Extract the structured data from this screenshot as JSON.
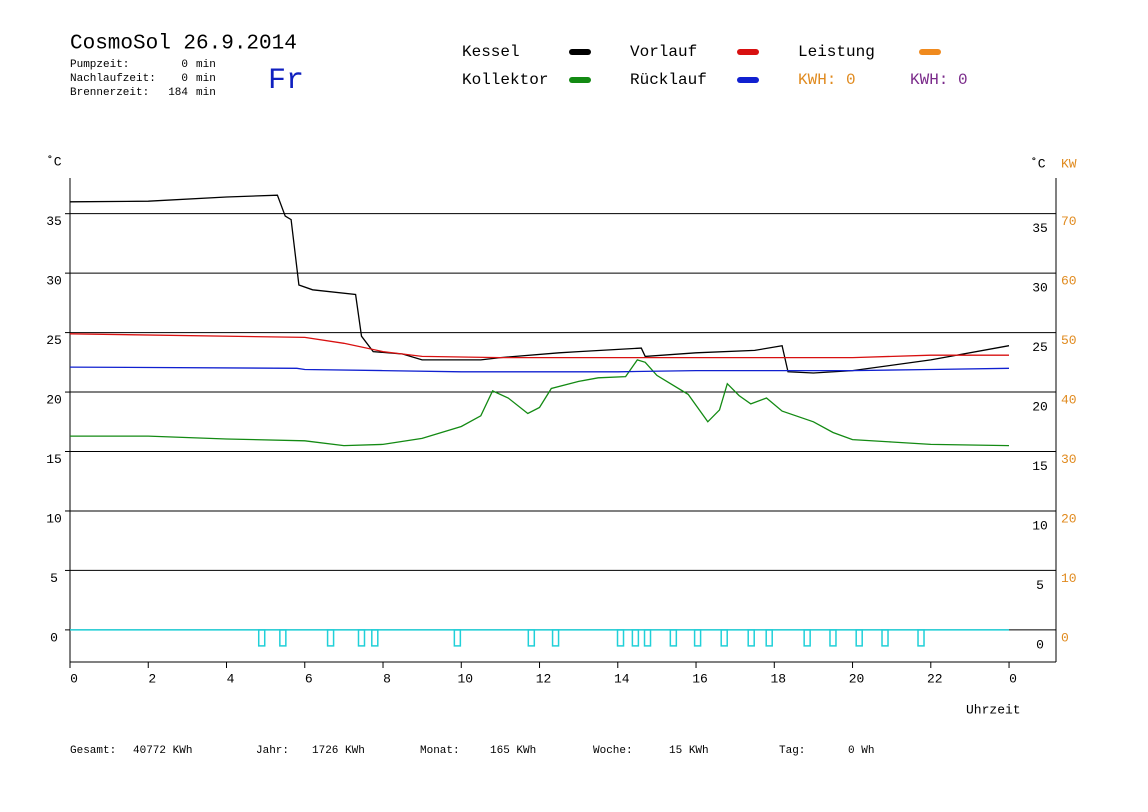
{
  "chart_data": {
    "type": "line",
    "title": "CosmoSol 26.9.2014",
    "day": "Fr",
    "stats": [
      {
        "label": "Pumpzeit:",
        "value": 0,
        "unit": "min"
      },
      {
        "label": "Nachlaufzeit:",
        "value": 0,
        "unit": "min"
      },
      {
        "label": "Brennerzeit:",
        "value": 184,
        "unit": "min"
      }
    ],
    "kwh": [
      {
        "label": "KWH:",
        "value": 0,
        "color": "#e08a1e"
      },
      {
        "label": "KWH:",
        "value": 0,
        "color": "#7a2a8a"
      }
    ],
    "ylabel": "˚C",
    "y2label_c": "˚C",
    "y2label": "KW",
    "xlabel": "Uhrzeit",
    "xlim": [
      0,
      25.2
    ],
    "xticks": [
      0,
      2,
      4,
      6,
      8,
      10,
      12,
      14,
      16,
      18,
      20,
      22,
      {
        "value": 24,
        "label": "0"
      }
    ],
    "ylim": [
      -2.7,
      38
    ],
    "yticks": [
      0,
      5,
      10,
      15,
      20,
      25,
      30,
      35
    ],
    "y2lim": [
      -5.4,
      76
    ],
    "y2ticks": [
      0,
      10,
      20,
      30,
      40,
      50,
      60,
      70
    ],
    "grid": true,
    "series": [
      {
        "name": "Kessel",
        "color": "#000000",
        "x": [
          0,
          2,
          4,
          5.3,
          5.5,
          5.65,
          5.85,
          6.2,
          7.3,
          7.45,
          7.75,
          8.5,
          9,
          10.5,
          11,
          12.5,
          13,
          14.6,
          14.7,
          16,
          17.5,
          18.2,
          18.35,
          19,
          20,
          22,
          24
        ],
        "values": [
          36.0,
          36.05,
          36.4,
          36.55,
          34.8,
          34.5,
          29.0,
          28.6,
          28.2,
          24.7,
          23.4,
          23.2,
          22.7,
          22.7,
          22.9,
          23.3,
          23.4,
          23.7,
          23.0,
          23.3,
          23.5,
          23.9,
          21.7,
          21.6,
          21.8,
          22.7,
          23.9
        ]
      },
      {
        "name": "Kollektor",
        "color": "#138a13",
        "x": [
          0,
          2,
          4,
          6,
          7,
          8,
          9,
          10,
          10.5,
          10.8,
          11.2,
          11.7,
          12,
          12.3,
          13,
          13.5,
          14.2,
          14.5,
          14.7,
          15,
          15.8,
          16.3,
          16.6,
          16.8,
          17.1,
          17.4,
          17.8,
          18.2,
          19,
          19.5,
          20,
          21,
          22,
          24
        ],
        "values": [
          16.3,
          16.3,
          16.05,
          15.9,
          15.5,
          15.6,
          16.1,
          17.1,
          18.0,
          20.1,
          19.5,
          18.2,
          18.7,
          20.3,
          20.9,
          21.2,
          21.3,
          22.7,
          22.5,
          21.4,
          19.8,
          17.5,
          18.5,
          20.7,
          19.7,
          19.0,
          19.5,
          18.4,
          17.5,
          16.6,
          16.0,
          15.8,
          15.6,
          15.5
        ]
      },
      {
        "name": "Vorlauf",
        "color": "#d81010",
        "x": [
          0,
          6,
          7,
          8,
          9,
          11,
          14,
          18,
          20,
          22,
          24
        ],
        "values": [
          24.9,
          24.6,
          24.1,
          23.4,
          23.0,
          22.9,
          22.9,
          22.9,
          22.9,
          23.1,
          23.1
        ]
      },
      {
        "name": "Rücklauf",
        "color": "#1020d0",
        "x": [
          0,
          5.8,
          6,
          8,
          10,
          14,
          16,
          18,
          20,
          22,
          24
        ],
        "values": [
          22.1,
          22.0,
          21.9,
          21.8,
          21.7,
          21.7,
          21.8,
          21.8,
          21.8,
          21.9,
          22.0
        ]
      },
      {
        "name": "Leistung",
        "color": "#f08a1e",
        "x": [],
        "values": []
      }
    ],
    "pulses": {
      "color": "#20d0d8",
      "x": [
        4.9,
        5.44,
        6.66,
        7.45,
        7.79,
        9.9,
        11.79,
        12.41,
        14.07,
        14.45,
        14.76,
        15.42,
        16.04,
        16.72,
        17.41,
        17.87,
        18.84,
        19.5,
        20.17,
        20.83,
        21.75
      ]
    },
    "totals": [
      {
        "label": "Gesamt:",
        "value": 40772,
        "unit": "KWh"
      },
      {
        "label": "Jahr:",
        "value": 1726,
        "unit": "KWh"
      },
      {
        "label": "Monat:",
        "value": 165,
        "unit": "KWh"
      },
      {
        "label": "Woche:",
        "value": 15,
        "unit": "KWh"
      },
      {
        "label": "Tag:",
        "value": 0,
        "unit": "Wh"
      }
    ]
  }
}
